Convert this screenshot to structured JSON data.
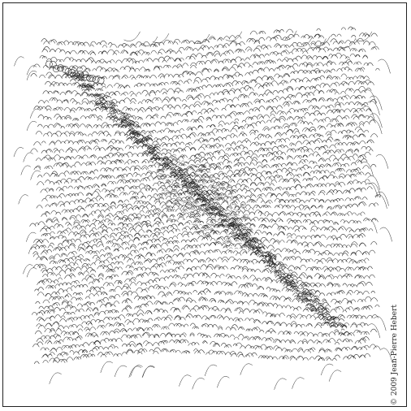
{
  "artwork": {
    "copyright": "© 2009 Jean-Pierre Hebert",
    "ink_color": "#2a2a2a",
    "paper_color": "#ffffff"
  }
}
